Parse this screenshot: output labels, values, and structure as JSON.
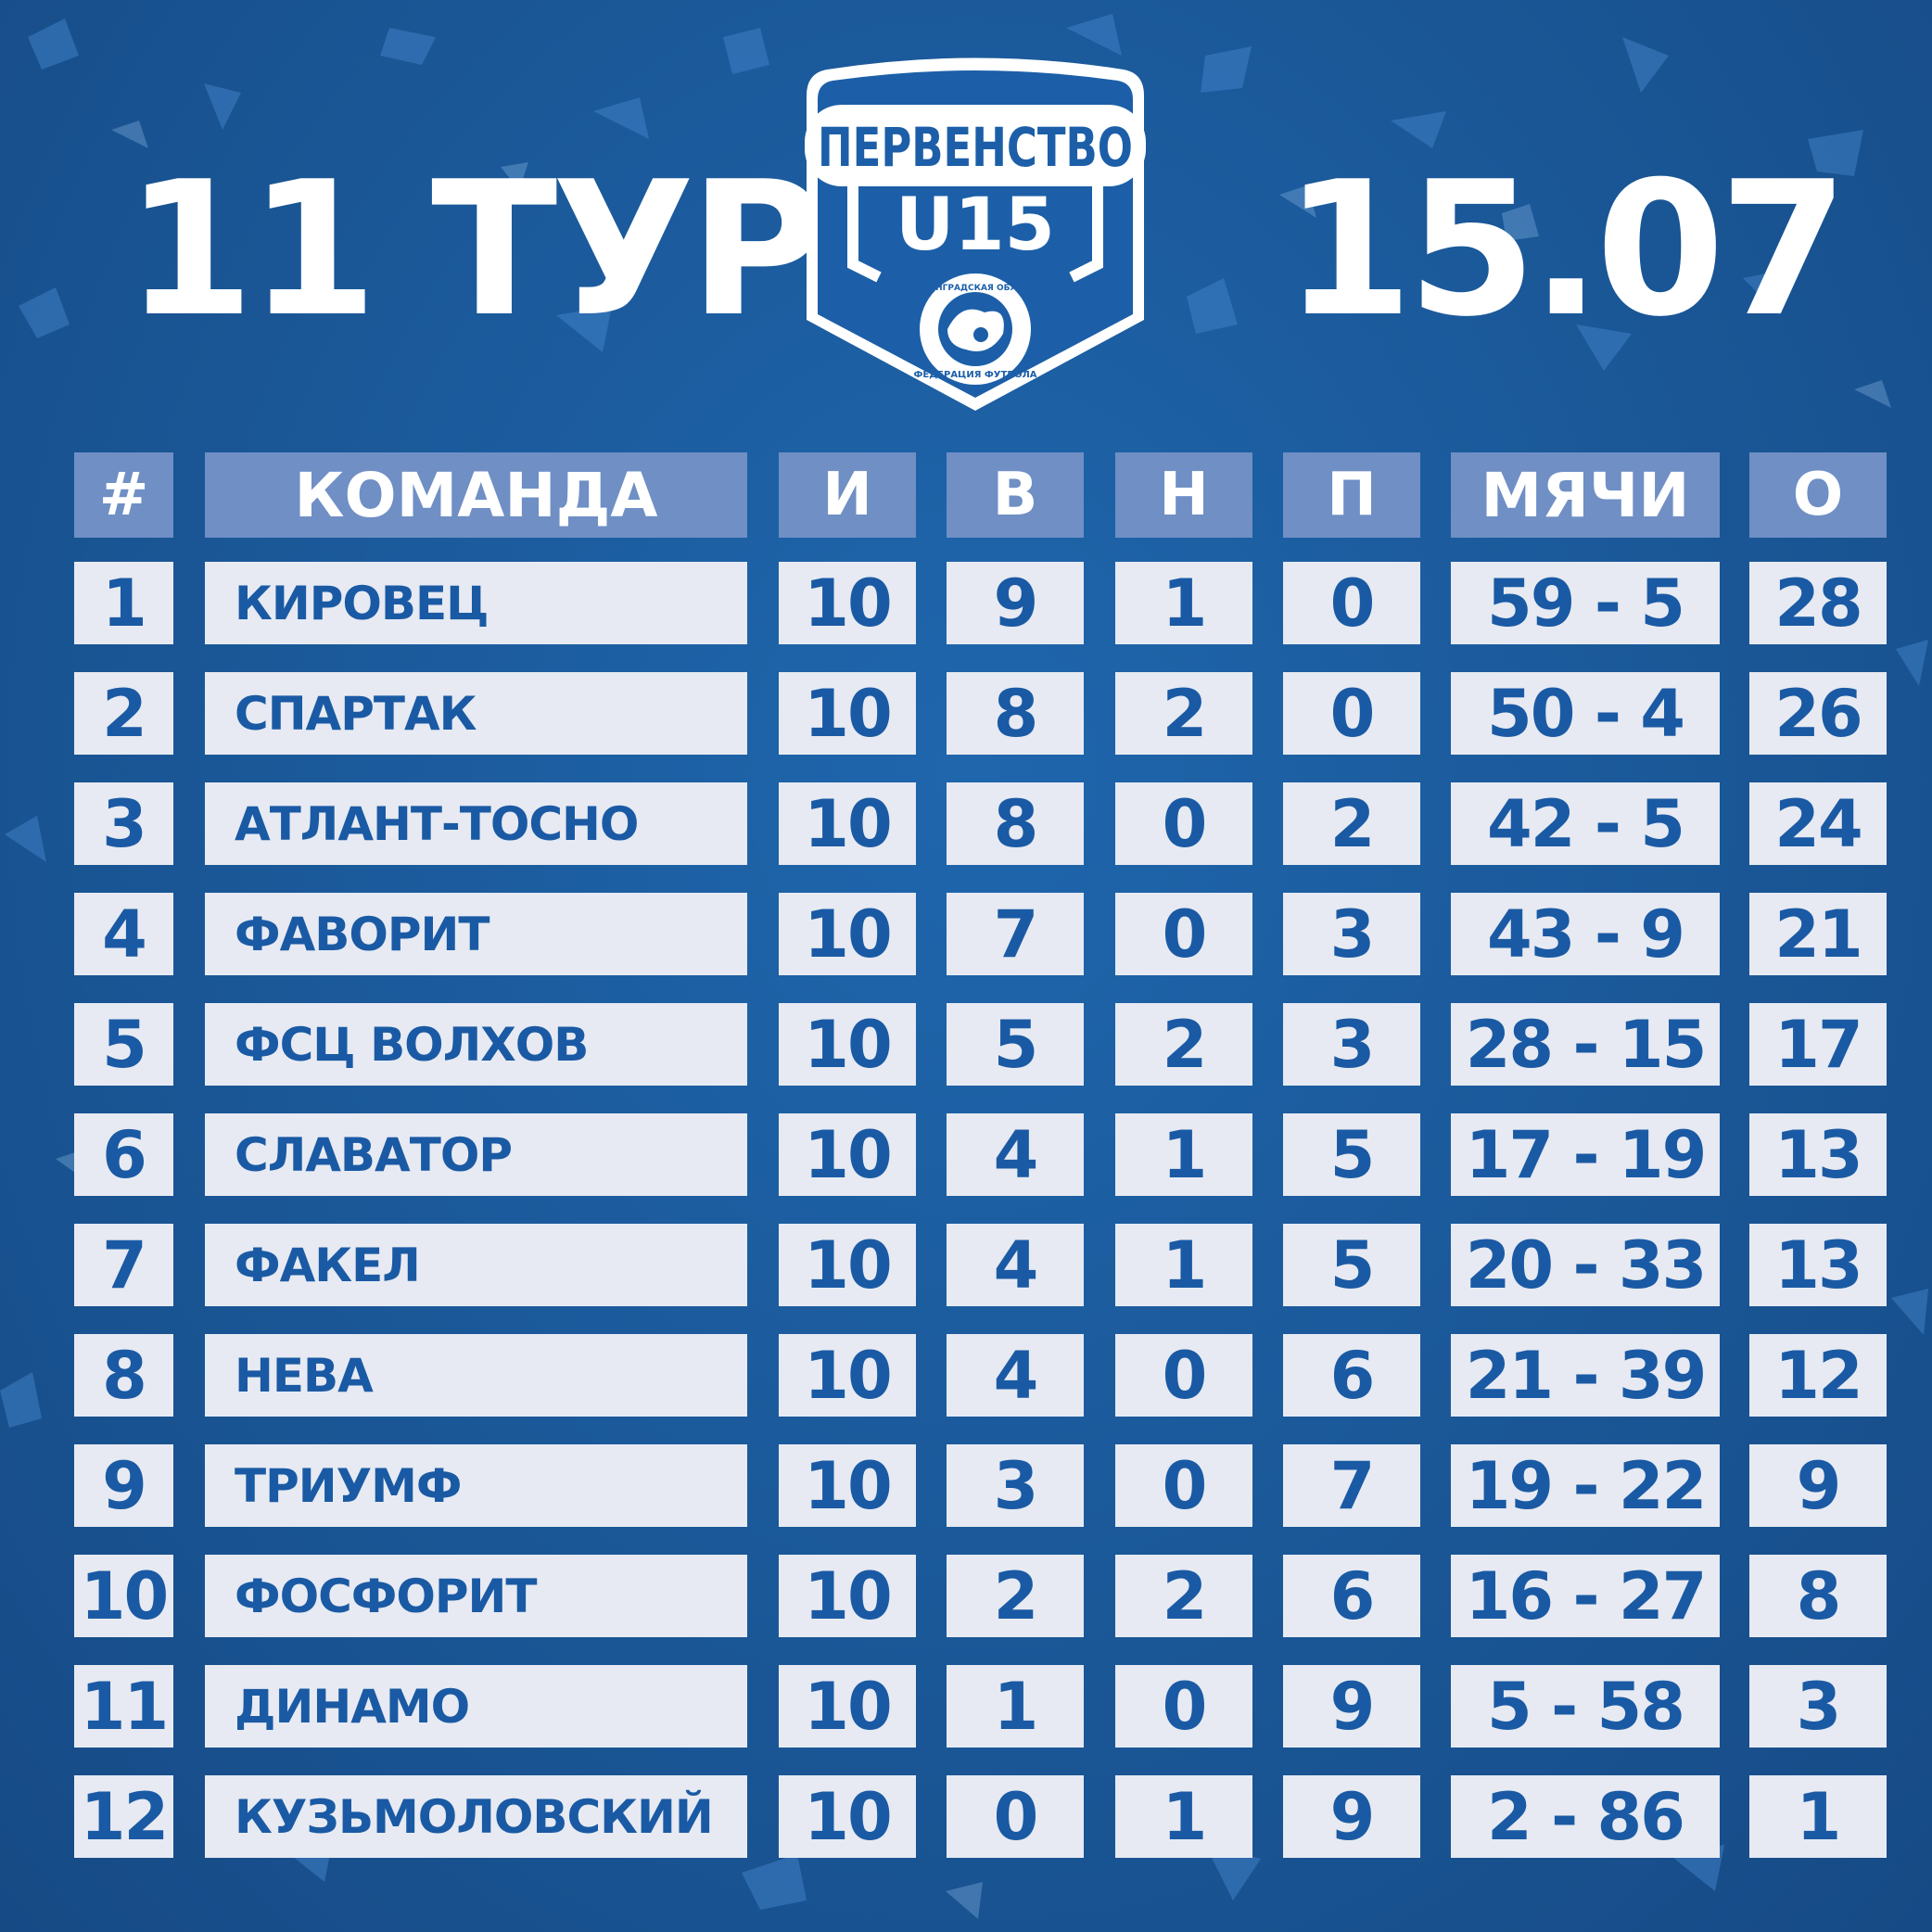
{
  "header": {
    "round": "11 ТУР",
    "date": "15.07"
  },
  "logo": {
    "top_text": "ПЕРВЕНСТВО",
    "main_text": "U15",
    "ring_text_top": "ЛЕНИНГРАДСКАЯ ОБЛАСТЬ",
    "ring_text_bottom": "ФЕДЕРАЦИЯ ФУТБОЛА"
  },
  "colors": {
    "background": "#1a5797",
    "header_cell": "#6f8fc5",
    "row_cell": "#e7eaf2",
    "row_text": "#1a5aa4"
  },
  "table": {
    "columns": [
      "#",
      "КОМАНДА",
      "И",
      "В",
      "Н",
      "П",
      "МЯЧИ",
      "О"
    ],
    "rows": [
      {
        "rank": "1",
        "team": "КИРОВЕЦ",
        "games": "10",
        "wins": "9",
        "draws": "1",
        "losses": "0",
        "goals": "59 - 5",
        "points": "28"
      },
      {
        "rank": "2",
        "team": "СПАРТАК",
        "games": "10",
        "wins": "8",
        "draws": "2",
        "losses": "0",
        "goals": "50 - 4",
        "points": "26"
      },
      {
        "rank": "3",
        "team": "АТЛАНТ-ТОСНО",
        "games": "10",
        "wins": "8",
        "draws": "0",
        "losses": "2",
        "goals": "42 - 5",
        "points": "24"
      },
      {
        "rank": "4",
        "team": "ФАВОРИТ",
        "games": "10",
        "wins": "7",
        "draws": "0",
        "losses": "3",
        "goals": "43 - 9",
        "points": "21"
      },
      {
        "rank": "5",
        "team": "ФСЦ ВОЛХОВ",
        "games": "10",
        "wins": "5",
        "draws": "2",
        "losses": "3",
        "goals": "28 - 15",
        "points": "17"
      },
      {
        "rank": "6",
        "team": "СЛАВАТОР",
        "games": "10",
        "wins": "4",
        "draws": "1",
        "losses": "5",
        "goals": "17 - 19",
        "points": "13"
      },
      {
        "rank": "7",
        "team": "ФАКЕЛ",
        "games": "10",
        "wins": "4",
        "draws": "1",
        "losses": "5",
        "goals": "20 - 33",
        "points": "13"
      },
      {
        "rank": "8",
        "team": "НЕВА",
        "games": "10",
        "wins": "4",
        "draws": "0",
        "losses": "6",
        "goals": "21 - 39",
        "points": "12"
      },
      {
        "rank": "9",
        "team": "ТРИУМФ",
        "games": "10",
        "wins": "3",
        "draws": "0",
        "losses": "7",
        "goals": "19 - 22",
        "points": "9"
      },
      {
        "rank": "10",
        "team": "ФОСФОРИТ",
        "games": "10",
        "wins": "2",
        "draws": "2",
        "losses": "6",
        "goals": "16 - 27",
        "points": "8"
      },
      {
        "rank": "11",
        "team": "ДИНАМО",
        "games": "10",
        "wins": "1",
        "draws": "0",
        "losses": "9",
        "goals": "5 - 58",
        "points": "3"
      },
      {
        "rank": "12",
        "team": "КУЗЬМОЛОВСКИЙ",
        "games": "10",
        "wins": "0",
        "draws": "1",
        "losses": "9",
        "goals": "2 - 86",
        "points": "1"
      }
    ]
  }
}
